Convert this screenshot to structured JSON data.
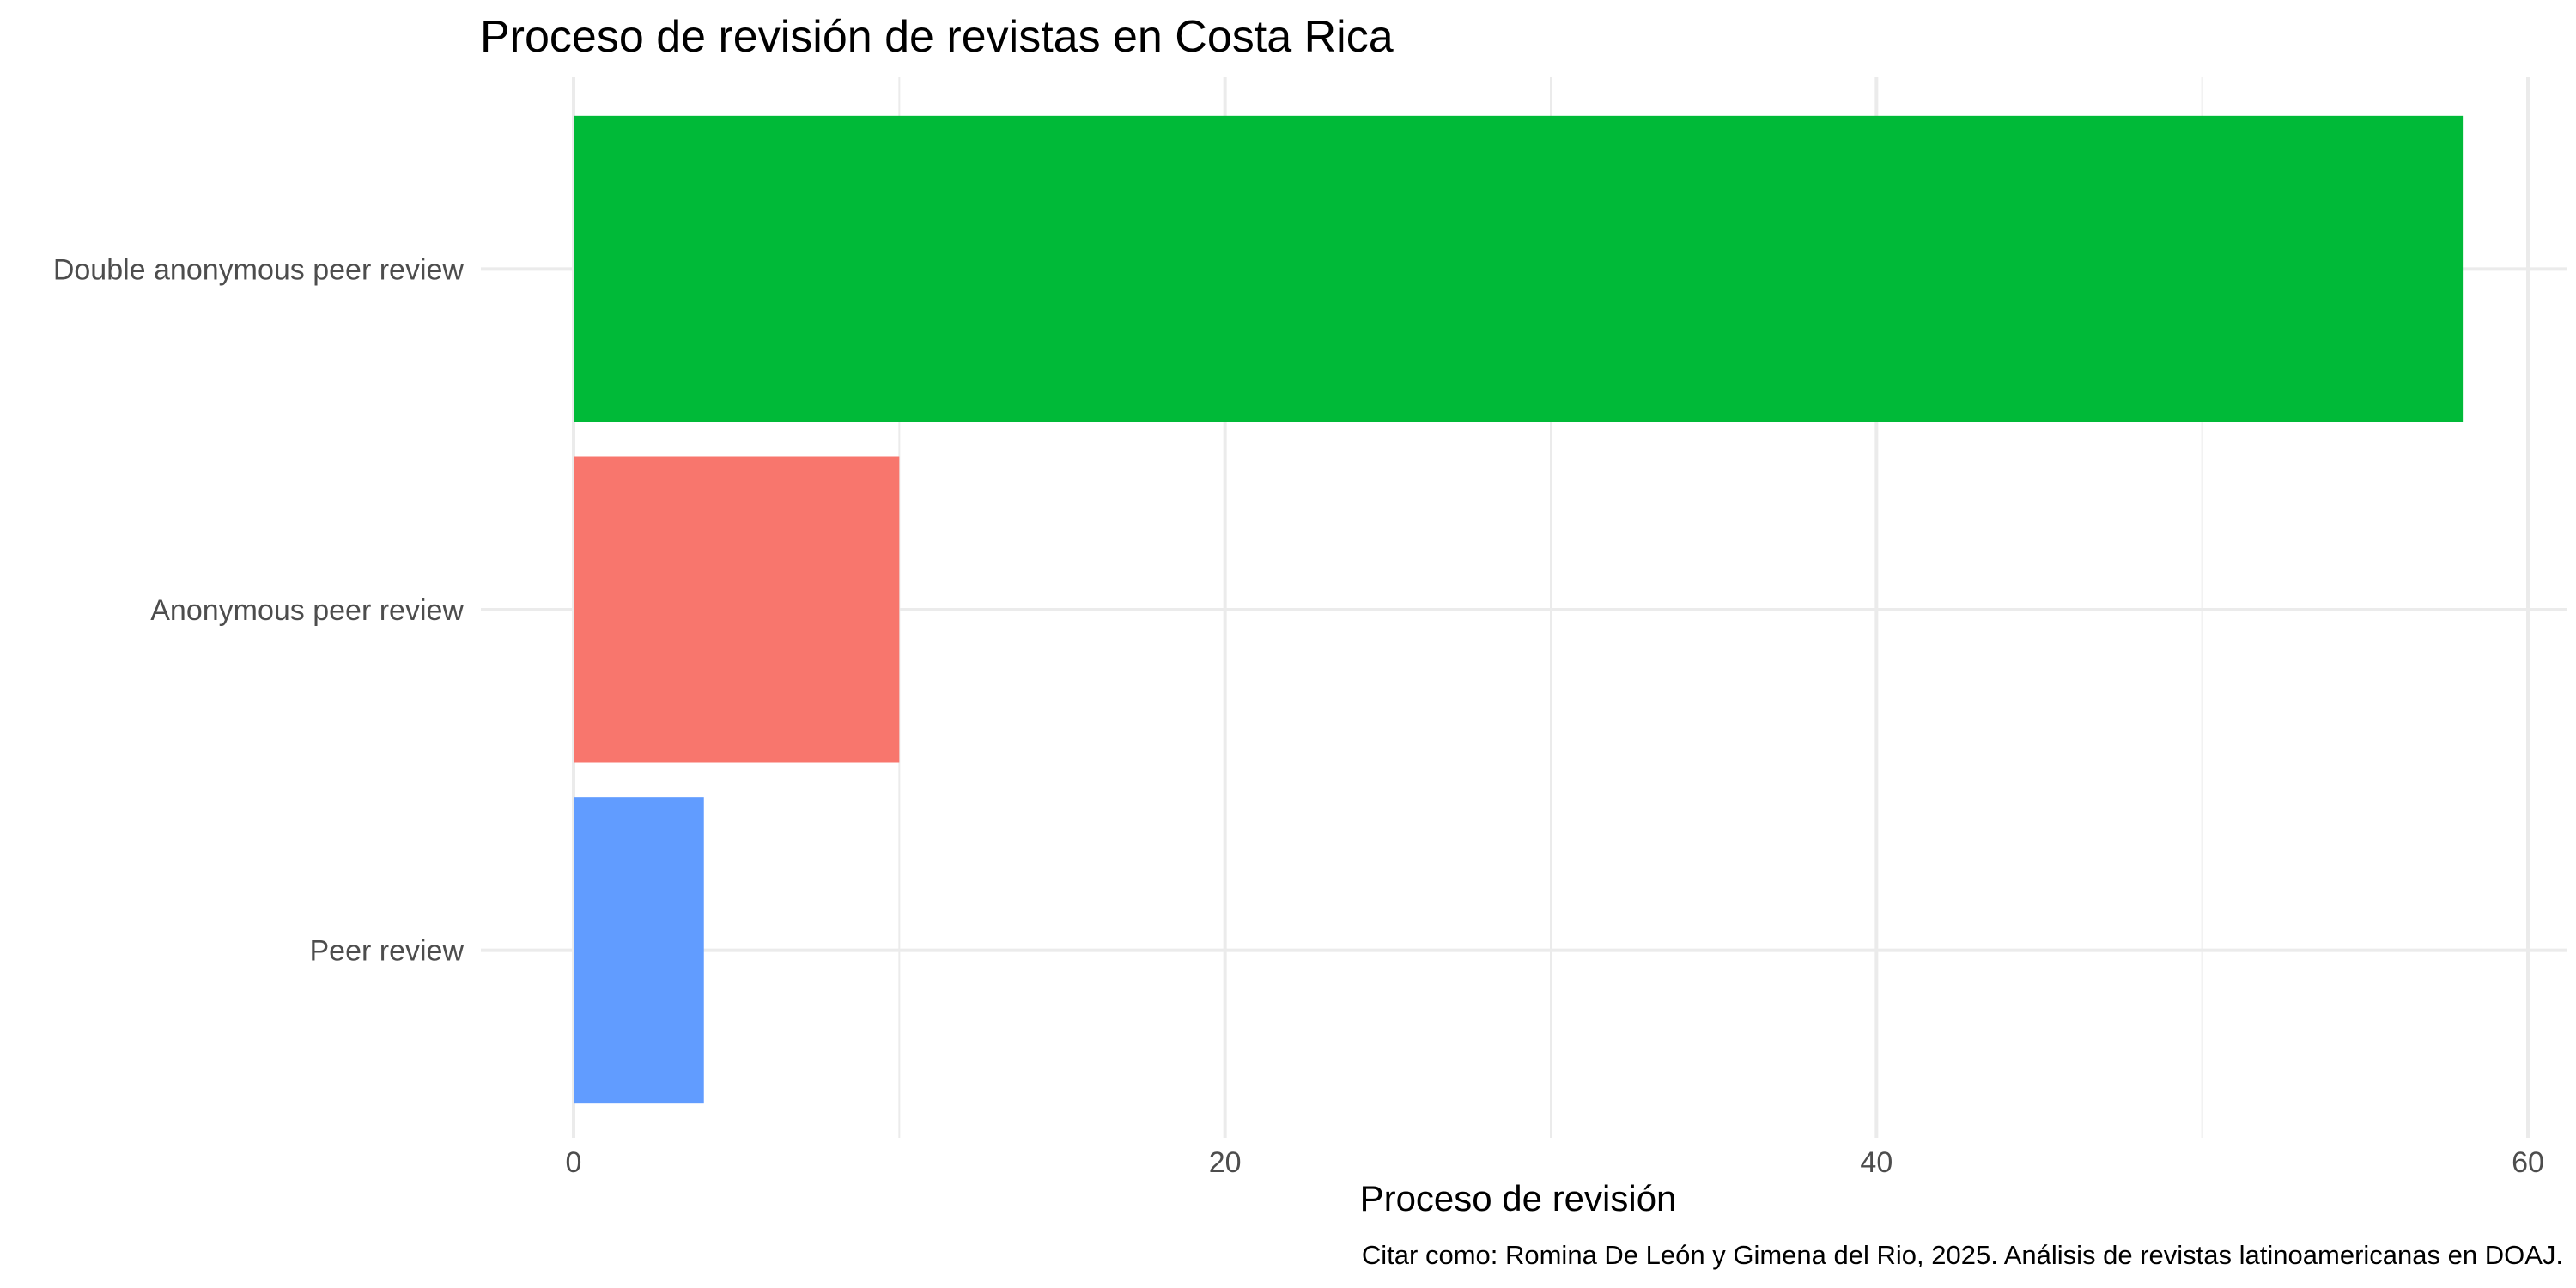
{
  "chart_data": {
    "type": "bar",
    "orientation": "horizontal",
    "title": "Proceso de revisión de revistas en Costa Rica",
    "xlabel": "Proceso de revisión",
    "ylabel": "",
    "caption": "Citar como: Romina De León y Gimena del Rio, 2025. Análisis de revistas latinoamericanas en DOAJ.",
    "categories": [
      "Double anonymous peer review",
      "Anonymous peer review",
      "Peer review"
    ],
    "values": [
      58,
      10,
      4
    ],
    "colors": [
      "#00BA38",
      "#F8766D",
      "#619CFF"
    ],
    "xlim": [
      0,
      60
    ],
    "x_ticks": [
      0,
      20,
      40,
      60
    ],
    "grid": true,
    "legend": "none"
  }
}
